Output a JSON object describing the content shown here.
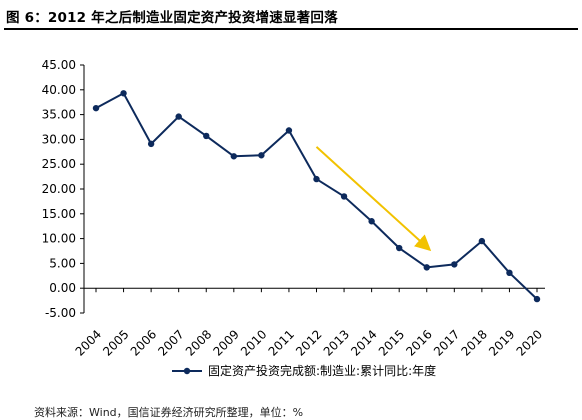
{
  "header": {
    "title": "图 6：2012 年之后制造业固定资产投资增速显著回落"
  },
  "source_note": "资料来源：Wind，国信证券经济研究所整理，单位：%",
  "chart_data": {
    "type": "line",
    "title": "",
    "xlabel": "",
    "ylabel": "",
    "ylim": [
      -5,
      45
    ],
    "y_ticks": [
      "45.00",
      "40.00",
      "35.00",
      "30.00",
      "25.00",
      "20.00",
      "15.00",
      "10.00",
      "5.00",
      "0.00",
      "-5.00"
    ],
    "categories": [
      "2004",
      "2005",
      "2006",
      "2007",
      "2008",
      "2009",
      "2010",
      "2011",
      "2012",
      "2013",
      "2014",
      "2015",
      "2016",
      "2017",
      "2018",
      "2019",
      "2020"
    ],
    "series": [
      {
        "name": "固定资产投资完成额:制造业:累计同比:年度",
        "color": "#0d2a5c",
        "values": [
          36.3,
          39.3,
          29.1,
          34.6,
          30.7,
          26.6,
          26.8,
          31.8,
          22.0,
          18.5,
          13.5,
          8.1,
          4.2,
          4.8,
          9.5,
          3.1,
          -2.2
        ]
      }
    ],
    "grid": false,
    "legend_position": "bottom",
    "annotation_arrow": {
      "color": "#f2c200",
      "from": {
        "x": "2012",
        "y": 28.5
      },
      "to": {
        "x": "2016",
        "y": 8.3
      }
    }
  }
}
